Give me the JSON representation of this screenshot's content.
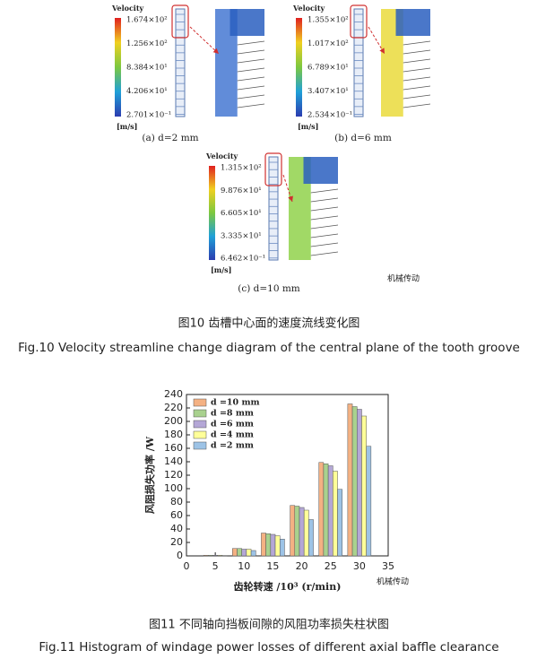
{
  "figure10": {
    "panels": [
      {
        "legend_title": "Velocity",
        "legend_labels": [
          "1.674×10²",
          "1.256×10²",
          "8.384×10¹",
          "4.206×10¹",
          "2.701×10⁻¹"
        ],
        "unit": "[m/s]",
        "caption": "(a) d=2 mm"
      },
      {
        "legend_title": "Velocity",
        "legend_labels": [
          "1.355×10²",
          "1.017×10²",
          "6.789×10¹",
          "3.407×10¹",
          "2.534×10⁻¹"
        ],
        "unit": "[m/s]",
        "caption": "(b) d=6 mm"
      },
      {
        "legend_title": "Velocity",
        "legend_labels": [
          "1.315×10²",
          "9.876×10¹",
          "6.605×10¹",
          "3.335×10¹",
          "6.462×10⁻¹"
        ],
        "unit": "[m/s]",
        "caption": "(c) d=10 mm"
      }
    ],
    "watermark": "机械传动",
    "caption_cn": "图10 齿槽中心面的速度流线变化图",
    "caption_en": "Fig.10 Velocity streamline change diagram of the central plane of the tooth groove"
  },
  "chart_data": {
    "type": "bar",
    "x": [
      5,
      10,
      15,
      20,
      25,
      30
    ],
    "series": [
      {
        "name": "d =10 mm",
        "color": "#f4b183",
        "values": [
          1,
          11,
          34,
          75,
          139,
          226
        ]
      },
      {
        "name": "d =8 mm",
        "color": "#a9d18e",
        "values": [
          1,
          11,
          33,
          74,
          137,
          222
        ]
      },
      {
        "name": "d =6 mm",
        "color": "#b4a7d6",
        "values": [
          1,
          10,
          32,
          72,
          134,
          218
        ]
      },
      {
        "name": "d =4 mm",
        "color": "#ffff99",
        "values": [
          1,
          10,
          30,
          68,
          126,
          208
        ]
      },
      {
        "name": "d =2 mm",
        "color": "#9dc3e6",
        "values": [
          0.5,
          8,
          25,
          54,
          99,
          163
        ]
      }
    ],
    "xlabel": "齿轮转速 /10³ (r/min)",
    "ylabel": "风阻损失功率 /W",
    "xlim": [
      0,
      35
    ],
    "xticks": [
      0,
      5,
      10,
      15,
      20,
      25,
      30,
      35
    ],
    "ylim": [
      0,
      240
    ],
    "yticks": [
      0,
      20,
      40,
      60,
      80,
      100,
      120,
      140,
      160,
      180,
      200,
      220,
      240
    ],
    "legend": "upper left"
  },
  "figure11": {
    "watermark": "机械传动",
    "caption_cn": "图11 不同轴向挡板间隙的风阻功率损失柱状图",
    "caption_en": "Fig.11 Histogram of windage power losses of different axial baffle clearance"
  }
}
